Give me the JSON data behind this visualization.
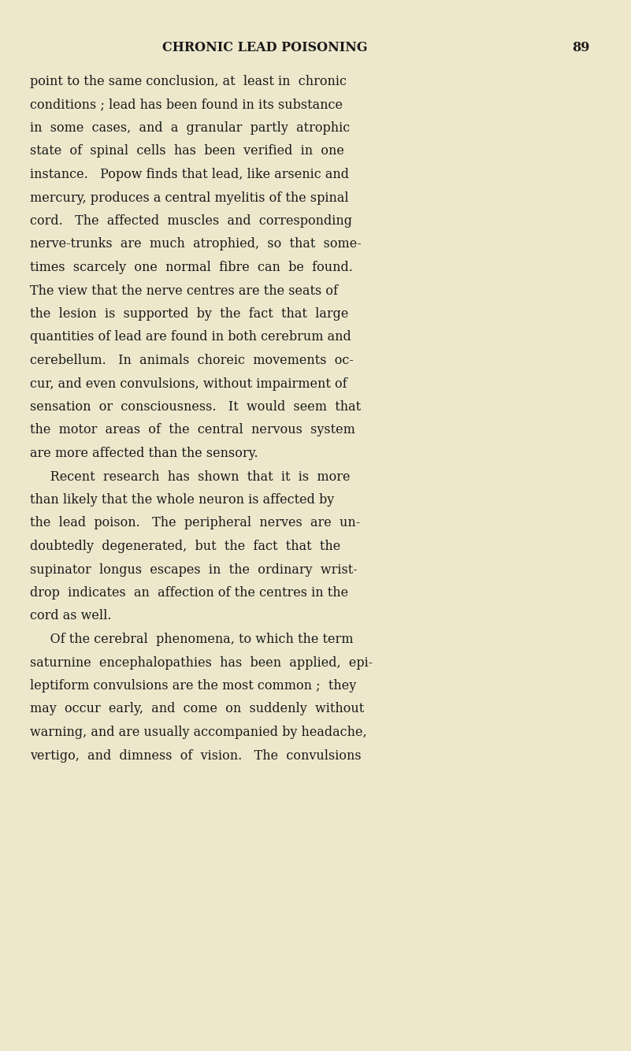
{
  "background_color": "#ede8cc",
  "page_color": "#ede8cc",
  "header_text": "CHRONIC LEAD POISONING",
  "page_number": "89",
  "header_fontsize": 11.5,
  "body_text": [
    "point to the same conclusion, at  least in  chronic",
    "conditions ; lead has been found in its substance",
    "in  some  cases,  and  a  granular  partly  atrophic",
    "state  of  spinal  cells  has  been  verified  in  one",
    "instance.   Popow finds that lead, like arsenic and",
    "mercury, produces a central myelitis of the spinal",
    "cord.   The  affected  muscles  and  corresponding",
    "nerve-trunks  are  much  atrophied,  so  that  some-",
    "times  scarcely  one  normal  fibre  can  be  found.",
    "The view that the nerve centres are the seats of",
    "the  lesion  is  supported  by  the  fact  that  large",
    "quantities of lead are found in both cerebrum and",
    "cerebellum.   In  animals  choreic  movements  oc-",
    "cur, and even convulsions, without impairment of",
    "sensation  or  consciousness.   It  would  seem  that",
    "the  motor  areas  of  the  central  nervous  system",
    "are more affected than the sensory.",
    "     Recent  research  has  shown  that  it  is  more",
    "than likely that the whole neuron is affected by",
    "the  lead  poison.   The  peripheral  nerves  are  un-",
    "doubtedly  degenerated,  but  the  fact  that  the",
    "supinator  longus  escapes  in  the  ordinary  wrist-",
    "drop  indicates  an  affection of the centres in the",
    "cord as well.",
    "     Of the cerebral  phenomena, to which the term",
    "saturnine  encephalopathies  has  been  applied,  epi-",
    "leptiform convulsions are the most common ;  they",
    "may  occur  early,  and  come  on  suddenly  without",
    "warning, and are usually accompanied by headache,",
    "vertigo,  and  dimness  of  vision.   The  convulsions"
  ],
  "body_fontsize": 11.5,
  "text_color": "#1a1a1a",
  "fig_width": 8.01,
  "fig_height": 13.34,
  "dpi": 100
}
